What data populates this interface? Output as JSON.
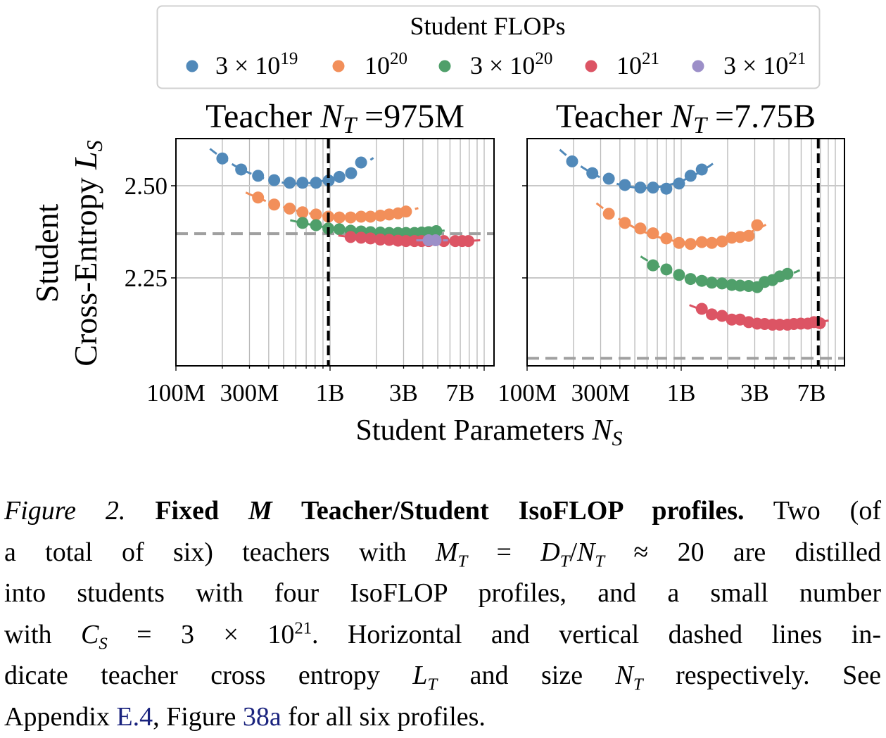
{
  "legend": {
    "title": "Student FLOPs",
    "entries": [
      {
        "base": "3 × 10",
        "exp": "19",
        "color": "#5189b9"
      },
      {
        "base": "10",
        "exp": "20",
        "color": "#f28f5a"
      },
      {
        "base": "3 × 10",
        "exp": "20",
        "color": "#4f9f6a"
      },
      {
        "base": "10",
        "exp": "21",
        "color": "#dc5464"
      },
      {
        "base": "3 × 10",
        "exp": "21",
        "color": "#9c8fc8"
      }
    ]
  },
  "chart_data": [
    {
      "type": "scatter",
      "title": "Teacher N_T =975M",
      "title_parts": {
        "pre": "Teacher ",
        "var": "N",
        "sub": "T",
        "post": " =975M"
      },
      "xscale": "log",
      "xlim": [
        100000000.0,
        11500000000.0
      ],
      "ylim": [
        2.01,
        2.63
      ],
      "xticks": [
        {
          "v": 100000000.0,
          "label": "100M"
        },
        {
          "v": 300000000.0,
          "label": "300M"
        },
        {
          "v": 1000000000.0,
          "label": "1B"
        },
        {
          "v": 3000000000.0,
          "label": "3B"
        },
        {
          "v": 7000000000.0,
          "label": "7B"
        }
      ],
      "yticks": [
        {
          "v": 2.5,
          "label": "2.50"
        },
        {
          "v": 2.25,
          "label": "2.25"
        }
      ],
      "grid": true,
      "teacher_size": 975000000.0,
      "teacher_loss": 2.37,
      "series": [
        {
          "name": "3 × 10^19",
          "points": [
            [
              200000000.0,
              2.574
            ],
            [
              265000000.0,
              2.544
            ],
            [
              341000000.0,
              2.527
            ],
            [
              434000000.0,
              2.515
            ],
            [
              547000000.0,
              2.508
            ],
            [
              663000000.0,
              2.508
            ],
            [
              811000000.0,
              2.508
            ],
            [
              980000000.0,
              2.514
            ],
            [
              1150000000.0,
              2.524
            ],
            [
              1370000000.0,
              2.534
            ],
            [
              1590000000.0,
              2.563
            ]
          ]
        },
        {
          "name": "10^20",
          "points": [
            [
              341000000.0,
              2.468
            ],
            [
              434000000.0,
              2.449
            ],
            [
              547000000.0,
              2.438
            ],
            [
              663000000.0,
              2.428
            ],
            [
              811000000.0,
              2.422
            ],
            [
              975000000.0,
              2.416
            ],
            [
              1150000000.0,
              2.414
            ],
            [
              1360000000.0,
              2.414
            ],
            [
              1590000000.0,
              2.416
            ],
            [
              1830000000.0,
              2.416
            ],
            [
              2120000000.0,
              2.419
            ],
            [
              2420000000.0,
              2.422
            ],
            [
              2760000000.0,
              2.425
            ],
            [
              3110000000.0,
              2.43
            ]
          ]
        },
        {
          "name": "3 × 10^20",
          "points": [
            [
              663000000.0,
              2.399
            ],
            [
              811000000.0,
              2.393
            ],
            [
              975000000.0,
              2.384
            ],
            [
              1150000000.0,
              2.382
            ],
            [
              1360000000.0,
              2.378
            ],
            [
              1590000000.0,
              2.376
            ],
            [
              1830000000.0,
              2.374
            ],
            [
              2120000000.0,
              2.373
            ],
            [
              2420000000.0,
              2.372
            ],
            [
              2760000000.0,
              2.372
            ],
            [
              3110000000.0,
              2.372
            ],
            [
              3530000000.0,
              2.372
            ],
            [
              3930000000.0,
              2.373
            ],
            [
              4360000000.0,
              2.374
            ],
            [
              4890000000.0,
              2.377
            ]
          ]
        },
        {
          "name": "10^21",
          "points": [
            [
              1360000000.0,
              2.361
            ],
            [
              1590000000.0,
              2.359
            ],
            [
              1830000000.0,
              2.357
            ],
            [
              2120000000.0,
              2.354
            ],
            [
              2420000000.0,
              2.353
            ],
            [
              2760000000.0,
              2.351
            ],
            [
              3110000000.0,
              2.35
            ],
            [
              3530000000.0,
              2.35
            ],
            [
              3930000000.0,
              2.35
            ],
            [
              4360000000.0,
              2.35
            ],
            [
              5470000000.0,
              2.35
            ],
            [
              6500000000.0,
              2.35
            ],
            [
              7200000000.0,
              2.35
            ],
            [
              7900000000.0,
              2.35
            ]
          ]
        },
        {
          "name": "3 × 10^21",
          "points": [
            [
              4360000000.0,
              2.352
            ],
            [
              4840000000.0,
              2.352
            ]
          ]
        }
      ]
    },
    {
      "type": "scatter",
      "title": "Teacher N_T =7.75B",
      "title_parts": {
        "pre": "Teacher ",
        "var": "N",
        "sub": "T",
        "post": " =7.75B"
      },
      "xscale": "log",
      "xlim": [
        100000000.0,
        11500000000.0
      ],
      "ylim": [
        2.01,
        2.63
      ],
      "xticks": [
        {
          "v": 100000000.0,
          "label": "100M"
        },
        {
          "v": 300000000.0,
          "label": "300M"
        },
        {
          "v": 1000000000.0,
          "label": "1B"
        },
        {
          "v": 3000000000.0,
          "label": "3B"
        },
        {
          "v": 7000000000.0,
          "label": "7B"
        }
      ],
      "yticks": [
        {
          "v": 2.5,
          "label": ""
        },
        {
          "v": 2.25,
          "label": ""
        }
      ],
      "grid": true,
      "teacher_size": 7750000000.0,
      "teacher_loss": 2.032,
      "series": [
        {
          "name": "3 × 10^19",
          "points": [
            [
              196000000.0,
              2.566
            ],
            [
              265000000.0,
              2.534
            ],
            [
              339000000.0,
              2.519
            ],
            [
              431000000.0,
              2.502
            ],
            [
              543000000.0,
              2.495
            ],
            [
              656000000.0,
              2.495
            ],
            [
              801000000.0,
              2.492
            ],
            [
              968000000.0,
              2.506
            ],
            [
              1150000000.0,
              2.527
            ],
            [
              1360000000.0,
              2.544
            ]
          ]
        },
        {
          "name": "10^20",
          "points": [
            [
              339000000.0,
              2.424
            ],
            [
              431000000.0,
              2.399
            ],
            [
              543000000.0,
              2.384
            ],
            [
              656000000.0,
              2.371
            ],
            [
              801000000.0,
              2.357
            ],
            [
              968000000.0,
              2.345
            ],
            [
              1150000000.0,
              2.342
            ],
            [
              1360000000.0,
              2.347
            ],
            [
              1580000000.0,
              2.345
            ],
            [
              1840000000.0,
              2.349
            ],
            [
              2130000000.0,
              2.359
            ],
            [
              2410000000.0,
              2.361
            ],
            [
              2740000000.0,
              2.364
            ],
            [
              3110000000.0,
              2.393
            ]
          ]
        },
        {
          "name": "3 × 10^20",
          "points": [
            [
              656000000.0,
              2.284
            ],
            [
              801000000.0,
              2.273
            ],
            [
              968000000.0,
              2.258
            ],
            [
              1150000000.0,
              2.247
            ],
            [
              1360000000.0,
              2.242
            ],
            [
              1580000000.0,
              2.237
            ],
            [
              1840000000.0,
              2.235
            ],
            [
              2130000000.0,
              2.231
            ],
            [
              2410000000.0,
              2.229
            ],
            [
              2740000000.0,
              2.228
            ],
            [
              3110000000.0,
              2.225
            ],
            [
              3480000000.0,
              2.239
            ],
            [
              3910000000.0,
              2.244
            ],
            [
              4360000000.0,
              2.254
            ],
            [
              4890000000.0,
              2.261
            ]
          ]
        },
        {
          "name": "10^21",
          "points": [
            [
              1360000000.0,
              2.166
            ],
            [
              1580000000.0,
              2.151
            ],
            [
              1840000000.0,
              2.147
            ],
            [
              2130000000.0,
              2.137
            ],
            [
              2410000000.0,
              2.137
            ],
            [
              2740000000.0,
              2.13
            ],
            [
              3110000000.0,
              2.126
            ],
            [
              3480000000.0,
              2.125
            ],
            [
              3910000000.0,
              2.123
            ],
            [
              4360000000.0,
              2.123
            ],
            [
              4890000000.0,
              2.123
            ],
            [
              5380000000.0,
              2.125
            ],
            [
              5970000000.0,
              2.126
            ],
            [
              6630000000.0,
              2.126
            ],
            [
              7270000000.0,
              2.13
            ],
            [
              7940000000.0,
              2.127
            ]
          ]
        }
      ]
    }
  ],
  "axes": {
    "ylabel_line1": "Student",
    "ylabel_line2": {
      "pre": "Cross-Entropy ",
      "var": "L",
      "sub": "S"
    },
    "xlabel": {
      "pre": "Student Parameters ",
      "var": "N",
      "sub": "S"
    }
  },
  "caption": {
    "lines": [
      [
        {
          "t": "Figure 2. ",
          "s": "i"
        },
        {
          "t": "Fixed ",
          "s": "b"
        },
        {
          "t": "M",
          "s": "bi"
        },
        {
          "t": " Teacher/Student IsoFLOP profiles.",
          "s": "b"
        },
        {
          "t": " Two (of",
          "s": ""
        }
      ],
      [
        {
          "t": "a total of six) teachers with ",
          "s": ""
        },
        {
          "t": "M",
          "s": "i"
        },
        {
          "t": "T",
          "s": "isub"
        },
        {
          "t": " = ",
          "s": ""
        },
        {
          "t": "D",
          "s": "i"
        },
        {
          "t": "T",
          "s": "isub"
        },
        {
          "t": "/",
          "s": ""
        },
        {
          "t": "N",
          "s": "i"
        },
        {
          "t": "T",
          "s": "isub"
        },
        {
          "t": " ≈ 20 are distilled",
          "s": ""
        }
      ],
      [
        {
          "t": "into students with four IsoFLOP profiles, and a small number",
          "s": ""
        }
      ],
      [
        {
          "t": "with ",
          "s": ""
        },
        {
          "t": "C",
          "s": "i"
        },
        {
          "t": "S",
          "s": "isub"
        },
        {
          "t": " = 3 × 10",
          "s": ""
        },
        {
          "t": "21",
          "s": "sup"
        },
        {
          "t": ".  Horizontal and vertical dashed lines in-",
          "s": ""
        }
      ],
      [
        {
          "t": "dicate teacher cross entropy ",
          "s": ""
        },
        {
          "t": "L",
          "s": "i"
        },
        {
          "t": "T",
          "s": "isub"
        },
        {
          "t": " and size ",
          "s": ""
        },
        {
          "t": "N",
          "s": "i"
        },
        {
          "t": "T",
          "s": "isub"
        },
        {
          "t": " respectively.  See",
          "s": ""
        }
      ],
      [
        {
          "t": "Appendix ",
          "s": ""
        },
        {
          "t": "E.4",
          "s": "link"
        },
        {
          "t": ", Figure ",
          "s": ""
        },
        {
          "t": "38a",
          "s": "link"
        },
        {
          "t": " for all six profiles.",
          "s": ""
        }
      ]
    ]
  }
}
